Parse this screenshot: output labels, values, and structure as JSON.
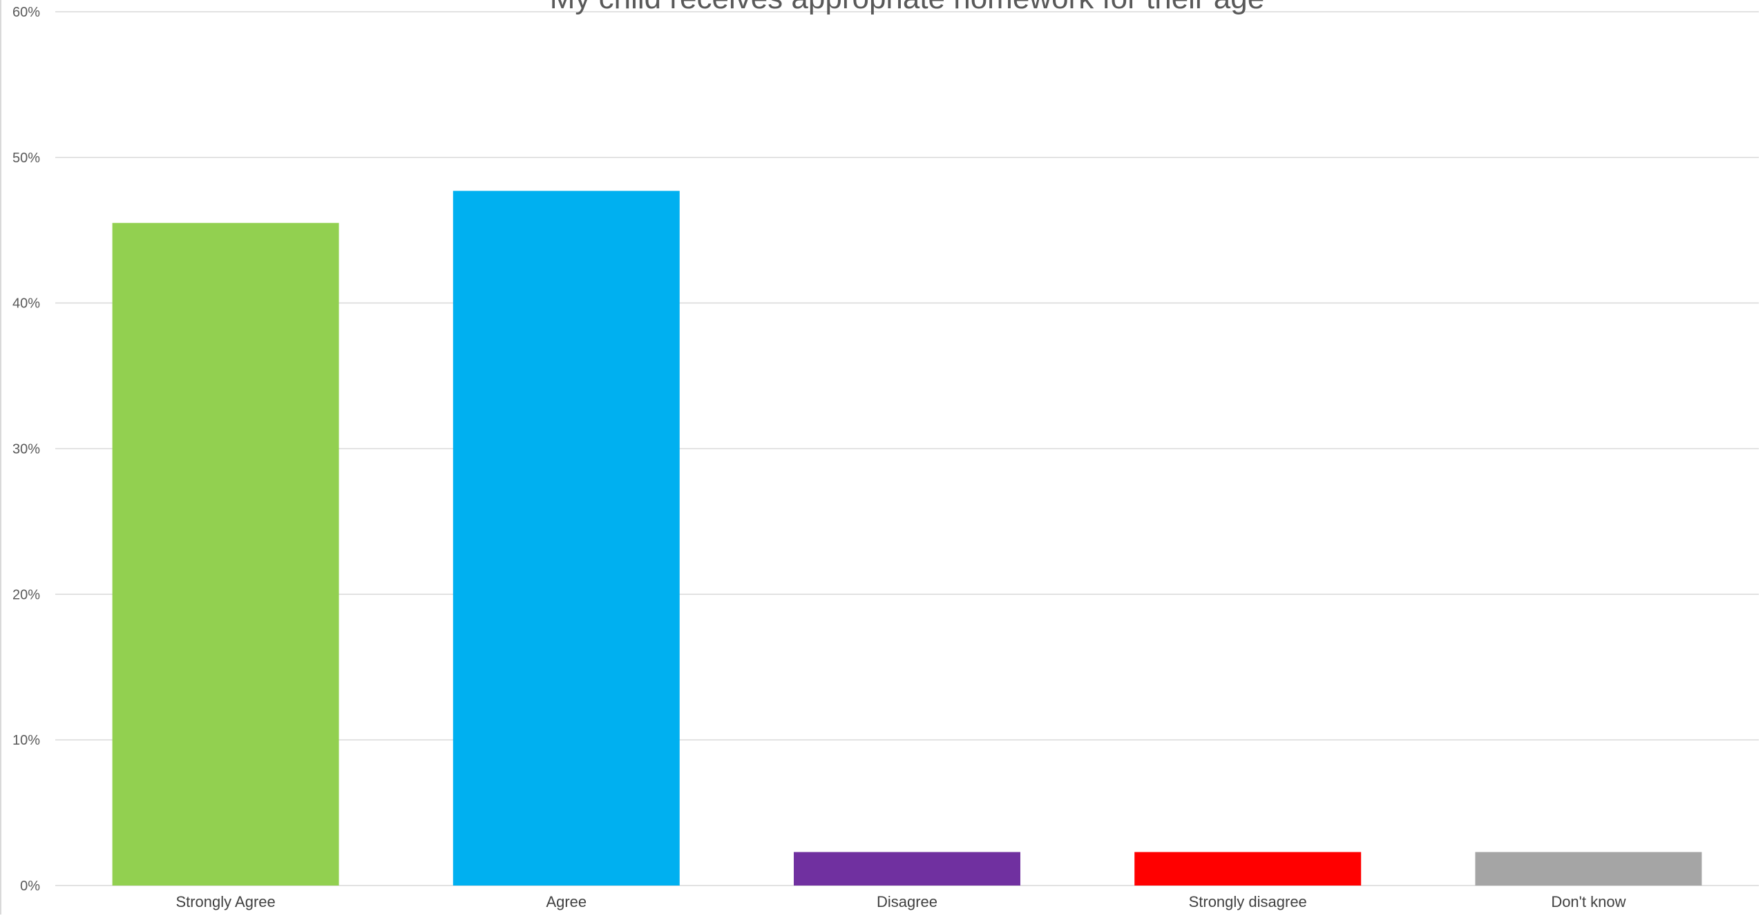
{
  "chart_data": {
    "type": "bar",
    "title": "My child receives appropriate homework for their age",
    "xlabel": "",
    "ylabel": "",
    "categories": [
      "Strongly Agree",
      "Agree",
      "Disagree",
      "Strongly disagree",
      "Don't know"
    ],
    "values": [
      45.5,
      47.7,
      2.3,
      2.3,
      2.3
    ],
    "colors": [
      "#92d050",
      "#00b0f0",
      "#7030a0",
      "#ff0000",
      "#a5a5a5"
    ],
    "ylim": [
      0,
      60
    ],
    "yticks": [
      0,
      10,
      20,
      30,
      40,
      50,
      60
    ],
    "ytick_labels": [
      "0%",
      "10%",
      "20%",
      "30%",
      "40%",
      "50%",
      "60%"
    ],
    "grid": true,
    "legend": "none"
  }
}
